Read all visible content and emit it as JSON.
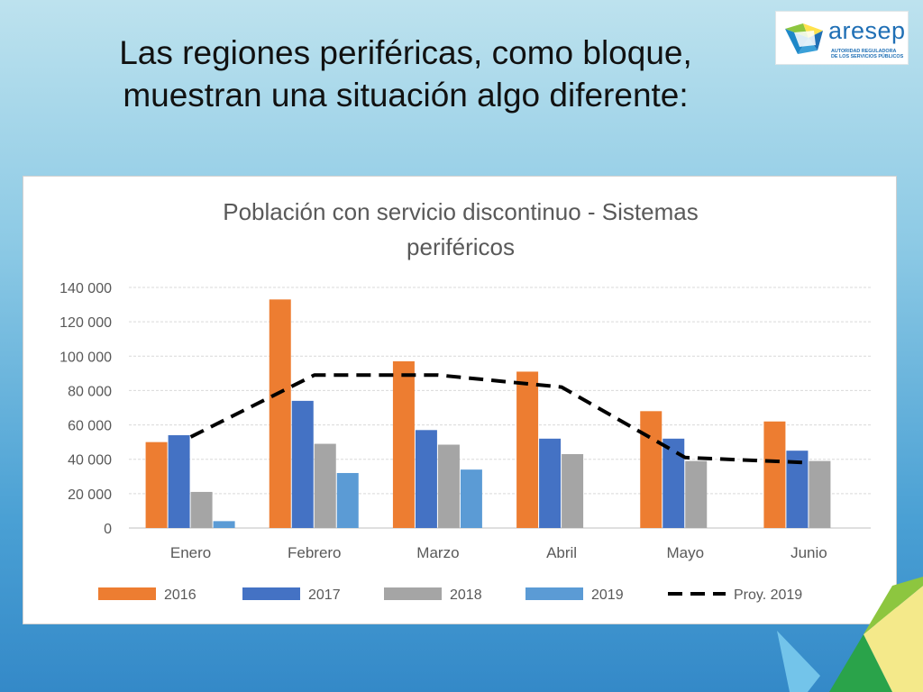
{
  "slide": {
    "title_line1": "Las regiones periféricas, como bloque,",
    "title_line2": "muestran una situación algo diferente:"
  },
  "logo": {
    "name": "aresep",
    "tagline_line1": "AUTORIDAD REGULADORA",
    "tagline_line2": "DE LOS SERVICIOS PÚBLICOS"
  },
  "colors": {
    "s2016": "#ed7d31",
    "s2017": "#4472c4",
    "s2018": "#a5a5a5",
    "s2019": "#5b9bd5",
    "proj": "#000000",
    "logo_blue": "#1f6fb5",
    "logo_green": "#8dc63f",
    "logo_yellow": "#ffe24d"
  },
  "chart_data": {
    "type": "bar",
    "title_line1": "Población con servicio discontinuo - Sistemas",
    "title_line2": "periféricos",
    "xlabel": "",
    "ylabel": "",
    "categories": [
      "Enero",
      "Febrero",
      "Marzo",
      "Abril",
      "Mayo",
      "Junio"
    ],
    "ylim": [
      0,
      140000
    ],
    "yticks": [
      0,
      20000,
      40000,
      60000,
      80000,
      100000,
      120000,
      140000
    ],
    "ytick_labels": [
      "0",
      "20 000",
      "40 000",
      "60 000",
      "80 000",
      "100 000",
      "120 000",
      "140 000"
    ],
    "grid": true,
    "legend_position": "bottom",
    "series": [
      {
        "name": "2016",
        "kind": "bar",
        "values": [
          50000,
          133000,
          97000,
          91000,
          68000,
          62000
        ]
      },
      {
        "name": "2017",
        "kind": "bar",
        "values": [
          54000,
          74000,
          57000,
          52000,
          52000,
          45000
        ]
      },
      {
        "name": "2018",
        "kind": "bar",
        "values": [
          21000,
          49000,
          48500,
          43000,
          39000,
          39000
        ]
      },
      {
        "name": "2019",
        "kind": "bar",
        "values": [
          4000,
          32000,
          34000,
          null,
          null,
          null
        ]
      },
      {
        "name": "Proy. 2019",
        "kind": "line",
        "style": "dashed",
        "values": [
          53000,
          89000,
          89000,
          82000,
          41000,
          38000
        ]
      }
    ]
  }
}
